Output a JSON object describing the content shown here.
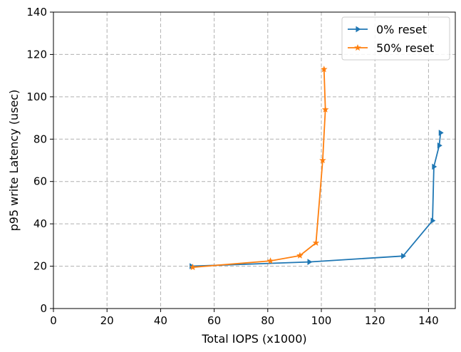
{
  "chart_data": {
    "type": "line",
    "title": "",
    "xlabel": "Total IOPS (x1000)",
    "ylabel": "p95 write Latency (usec)",
    "xlim": [
      0,
      150
    ],
    "ylim": [
      0,
      140
    ],
    "xticks": [
      0,
      20,
      40,
      60,
      80,
      100,
      120,
      140
    ],
    "yticks": [
      0,
      20,
      40,
      60,
      80,
      100,
      120,
      140
    ],
    "grid": true,
    "legend_position": "top-right",
    "series": [
      {
        "name": "  0% reset",
        "color": "#1f77b4",
        "marker": "triangle-right",
        "x": [
          51.5,
          95.5,
          130.5,
          141.5,
          142.0,
          144.0,
          144.5
        ],
        "y": [
          20.0,
          22.0,
          24.8,
          41.5,
          67.0,
          77.0,
          83.0
        ]
      },
      {
        "name": " 50% reset",
        "color": "#ff7f0e",
        "marker": "star",
        "x": [
          52.0,
          81.0,
          92.0,
          98.0,
          100.5,
          101.5,
          101.0
        ],
        "y": [
          19.5,
          22.5,
          25.0,
          31.0,
          70.0,
          94.0,
          113.0
        ]
      }
    ]
  }
}
